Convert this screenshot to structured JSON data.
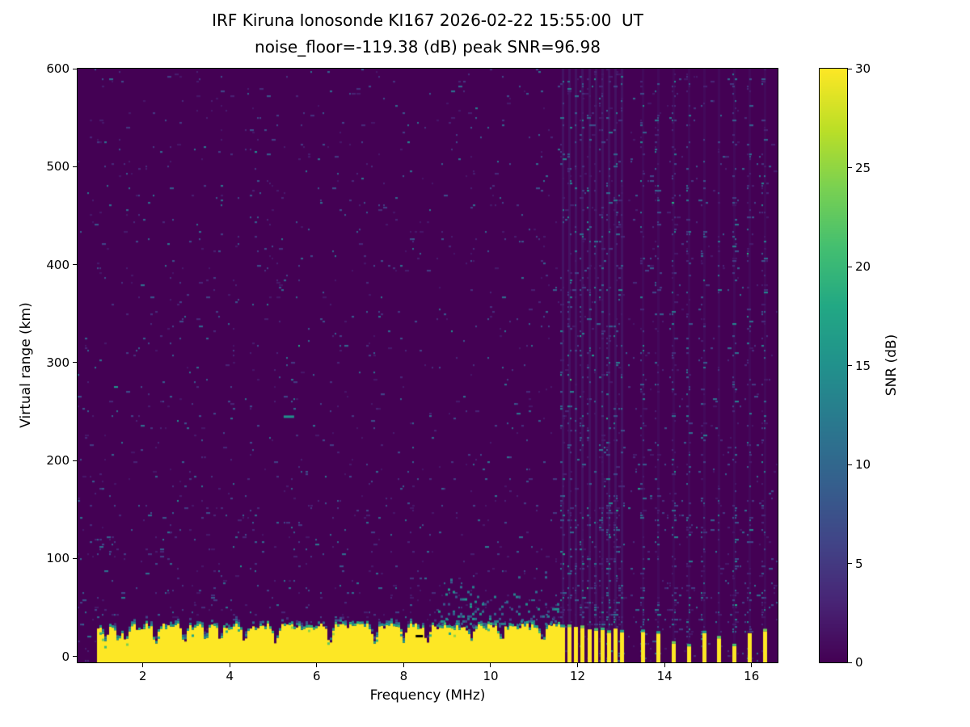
{
  "chart_data": {
    "type": "heatmap",
    "title": "IRF Kiruna Ionosonde KI167 2026-02-22 15:55:00  UT",
    "subtitle": "noise_floor=-119.38 (dB) peak SNR=96.98",
    "station": "IRF Kiruna Ionosonde KI167",
    "timestamp_ut": "2026-02-22 15:55:00",
    "noise_floor_db": -119.38,
    "peak_snr_db": 96.98,
    "xlabel": "Frequency (MHz)",
    "ylabel": "Virtual range (km)",
    "colorbar_label": "SNR (dB)",
    "xlim": [
      0.5,
      16.6
    ],
    "ylim": [
      -6,
      600
    ],
    "clim": [
      0,
      30
    ],
    "xticks": [
      2,
      4,
      6,
      8,
      10,
      12,
      14,
      16
    ],
    "yticks": [
      0,
      100,
      200,
      300,
      400,
      500,
      600
    ],
    "colorbar_ticks": [
      0,
      5,
      10,
      15,
      20,
      25,
      30
    ],
    "colormap": "viridis",
    "colormap_stops": [
      [
        0,
        "#440154"
      ],
      [
        0.1,
        "#482475"
      ],
      [
        0.2,
        "#414487"
      ],
      [
        0.3,
        "#355f8d"
      ],
      [
        0.4,
        "#2a788e"
      ],
      [
        0.5,
        "#21918c"
      ],
      [
        0.6,
        "#22a884"
      ],
      [
        0.7,
        "#44bf70"
      ],
      [
        0.8,
        "#7ad151"
      ],
      [
        0.9,
        "#bddf26"
      ],
      [
        1,
        "#fde725"
      ]
    ],
    "background_snr_db": 0,
    "features": {
      "ground_clutter_band": {
        "freq_start_mhz": 0.95,
        "freq_end_mhz": 11.62,
        "mean_top_km": 28,
        "snr_db": 30
      },
      "band_notch_freqs_mhz": [
        1.15,
        1.45,
        1.62,
        2.3,
        2.95,
        3.45,
        3.78,
        4.35,
        5.05,
        6.3,
        7.35,
        8.0,
        8.55,
        9.55,
        10.25,
        11.2
      ],
      "rfi_bars": [
        {
          "freq_mhz": 11.66,
          "top_km": 30
        },
        {
          "freq_mhz": 11.81,
          "top_km": 31
        },
        {
          "freq_mhz": 11.96,
          "top_km": 29
        },
        {
          "freq_mhz": 12.11,
          "top_km": 30
        },
        {
          "freq_mhz": 12.26,
          "top_km": 28
        },
        {
          "freq_mhz": 12.41,
          "top_km": 27
        },
        {
          "freq_mhz": 12.56,
          "top_km": 27
        },
        {
          "freq_mhz": 12.71,
          "top_km": 25
        },
        {
          "freq_mhz": 12.86,
          "top_km": 27
        },
        {
          "freq_mhz": 13.01,
          "top_km": 24
        },
        {
          "freq_mhz": 13.5,
          "top_km": 26
        },
        {
          "freq_mhz": 13.85,
          "top_km": 23
        },
        {
          "freq_mhz": 14.2,
          "top_km": 12
        },
        {
          "freq_mhz": 14.55,
          "top_km": 9
        },
        {
          "freq_mhz": 14.9,
          "top_km": 22
        },
        {
          "freq_mhz": 15.25,
          "top_km": 19
        },
        {
          "freq_mhz": 15.6,
          "top_km": 11
        },
        {
          "freq_mhz": 15.95,
          "top_km": 23
        },
        {
          "freq_mhz": 16.3,
          "top_km": 26
        }
      ],
      "rfi_column_freqs_mhz": [
        11.66,
        11.81,
        11.96,
        12.11,
        12.26,
        12.41,
        12.56,
        12.71,
        12.86,
        13.01,
        13.5,
        13.85,
        14.2,
        14.55,
        14.9,
        15.25,
        15.6,
        15.95,
        16.3
      ],
      "echo_streak": {
        "freq_mhz": 5.35,
        "range_km": 246,
        "snr_db": 15
      },
      "dropout_dash": {
        "freq_mhz": 8.35,
        "range_km": 22
      },
      "diffuse_scatter": {
        "freq_start_mhz": 8.8,
        "freq_end_mhz": 11.62,
        "max_range_km": 90
      }
    }
  }
}
